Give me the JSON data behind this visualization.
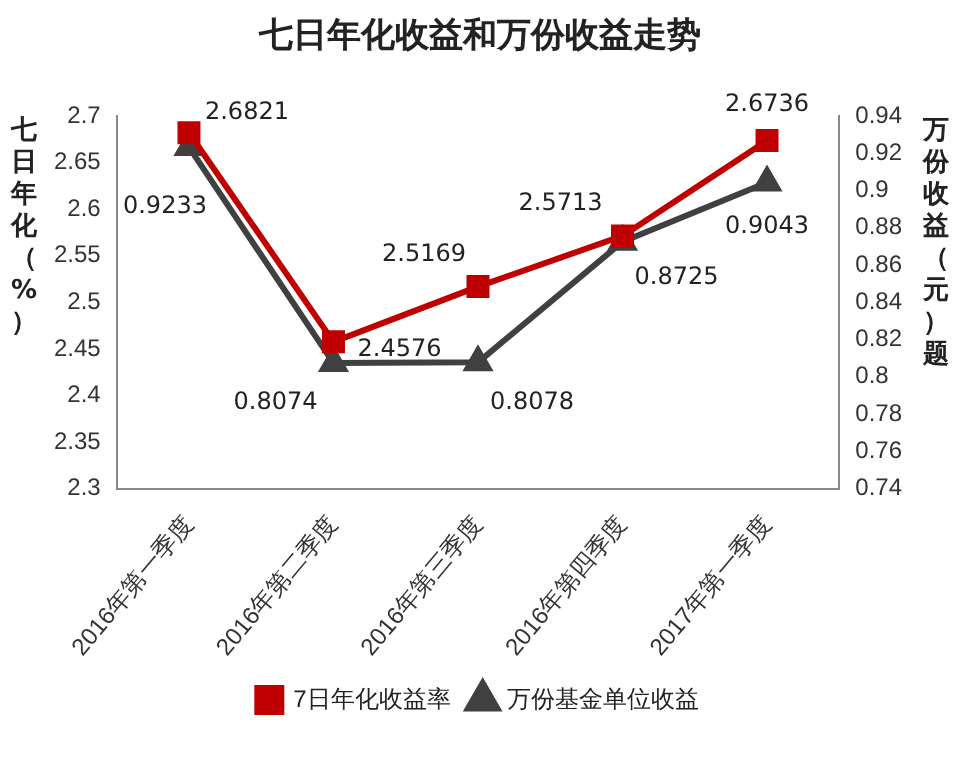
{
  "chart_data": {
    "type": "line",
    "title": "七日年化收益和万份收益走势",
    "ylabel": "七日年化（%）",
    "y2label": "万份收益（元）题",
    "categories": [
      "2016年第一季度",
      "2016年第二季度",
      "2016年第三季度",
      "2016年第四季度",
      "2017年第一季度"
    ],
    "series": [
      {
        "name": "7日年化收益率",
        "color": "#c00000",
        "marker": "square",
        "values": [
          2.6821,
          2.4576,
          2.5169,
          2.5713,
          2.6736
        ]
      },
      {
        "name": "万份基金单位收益",
        "color": "#404040",
        "marker": "triangle",
        "axis": "y2",
        "values": [
          0.9233,
          0.8074,
          0.8078,
          0.8725,
          0.9043
        ]
      }
    ],
    "ylim": [
      2.3,
      2.7
    ],
    "yticks": [
      2.3,
      2.35,
      2.4,
      2.45,
      2.5,
      2.55,
      2.6,
      2.65,
      2.7
    ],
    "y2lim": [
      0.74,
      0.94
    ],
    "y2ticks": [
      0.74,
      0.76,
      0.78,
      0.8,
      0.82,
      0.84,
      0.86,
      0.88,
      0.9,
      0.92,
      0.94
    ],
    "data_labels": true,
    "grid": false,
    "legend": "bottom",
    "line_style": "solid"
  }
}
